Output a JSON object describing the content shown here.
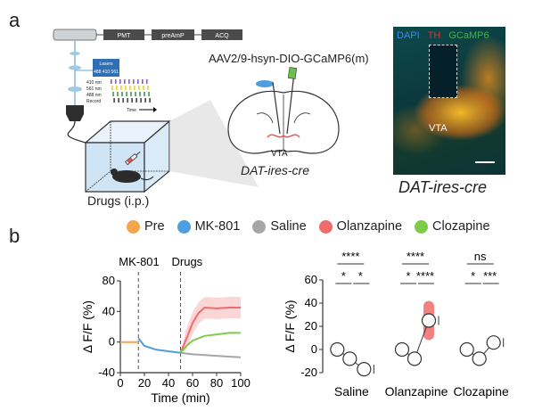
{
  "panel_a": {
    "letter": "a",
    "virus_label": "AAV2/9-hsyn-DIO-GCaMP6(m)",
    "vta_label": "VTA",
    "mouse_line_label": "DAT-ires-cre",
    "micrograph_mouse_line_label": "DAT-ires-cre",
    "drugs_label": "Drugs (i.p.)",
    "rig_boxes": [
      "PMT",
      "preAmP",
      "ACQ"
    ],
    "lasers_label": "Lasers",
    "lasers_sublabel": "488 410 561",
    "raster_rows": [
      "410 nm",
      "561 nm",
      "488 nm",
      "Record"
    ],
    "time_label": "Time",
    "stain_labels": [
      {
        "text": "DAPI",
        "color": "#2a6fd6"
      },
      {
        "text": "TH",
        "color": "#e0262b"
      },
      {
        "text": "GCaMP6",
        "color": "#35a13a"
      }
    ],
    "micrograph_vta_label": "VTA"
  },
  "panel_b": {
    "letter": "b",
    "legend": [
      {
        "name": "Pre",
        "color": "#f5a54a"
      },
      {
        "name": "MK-801",
        "color": "#4f9ee0"
      },
      {
        "name": "Saline",
        "color": "#a6a6a6"
      },
      {
        "name": "Olanzapine",
        "color": "#f06b6b"
      },
      {
        "name": "Clozapine",
        "color": "#7ecb4a"
      }
    ],
    "event_labels": [
      "MK-801",
      "Drugs"
    ]
  },
  "chart_data": [
    {
      "type": "line",
      "xlabel": "Time (min)",
      "ylabel": "Δ F/F (%)",
      "xlim": [
        0,
        100
      ],
      "ylim": [
        -40,
        80
      ],
      "xticks": [
        0,
        20,
        40,
        60,
        80,
        100
      ],
      "yticks": [
        -40,
        0,
        40,
        80
      ],
      "event_lines": [
        {
          "x": 15,
          "label": "MK-801"
        },
        {
          "x": 50,
          "label": "Drugs"
        }
      ],
      "series": [
        {
          "name": "Pre",
          "color": "#f5a54a",
          "x": [
            0,
            5,
            10,
            15
          ],
          "y": [
            0,
            0,
            0,
            0
          ]
        },
        {
          "name": "MK-801",
          "color": "#4f9ee0",
          "x": [
            15,
            20,
            30,
            40,
            50
          ],
          "y": [
            5,
            -5,
            -10,
            -12,
            -14
          ]
        },
        {
          "name": "Saline",
          "color": "#a6a6a6",
          "x": [
            50,
            60,
            70,
            80,
            90,
            100
          ],
          "y": [
            -14,
            -16,
            -17,
            -18,
            -19,
            -20
          ]
        },
        {
          "name": "Olanzapine",
          "color": "#f06b6b",
          "x": [
            50,
            55,
            60,
            65,
            70,
            80,
            90,
            100
          ],
          "y": [
            -14,
            5,
            25,
            38,
            45,
            44,
            45,
            45
          ]
        },
        {
          "name": "Clozapine",
          "color": "#7ecb4a",
          "x": [
            50,
            55,
            60,
            70,
            80,
            90,
            100
          ],
          "y": [
            -14,
            -5,
            2,
            8,
            10,
            12,
            12
          ]
        }
      ]
    },
    {
      "type": "scatter",
      "ylabel": "Δ F/F (%)",
      "ylim": [
        -20,
        60
      ],
      "yticks": [
        -20,
        0,
        20,
        40,
        60
      ],
      "categories": [
        "Saline",
        "Olanzapine",
        "Clozapine"
      ],
      "groups": [
        {
          "name": "Saline",
          "colors": [
            "#f5a54a",
            "#4f9ee0",
            "#a6a6a6"
          ],
          "means": [
            0,
            -8,
            -17
          ],
          "significance": {
            "top": "****",
            "left": "*",
            "right": "*"
          }
        },
        {
          "name": "Olanzapine",
          "colors": [
            "#f5a54a",
            "#4f9ee0",
            "#f06b6b"
          ],
          "means": [
            0,
            -8,
            25
          ],
          "significance": {
            "top": "****",
            "left": "*",
            "right": "****"
          }
        },
        {
          "name": "Clozapine",
          "colors": [
            "#f5a54a",
            "#4f9ee0",
            "#7ecb4a"
          ],
          "means": [
            0,
            -8,
            6
          ],
          "significance": {
            "top": "ns",
            "left": "*",
            "right": "***"
          }
        }
      ]
    }
  ]
}
